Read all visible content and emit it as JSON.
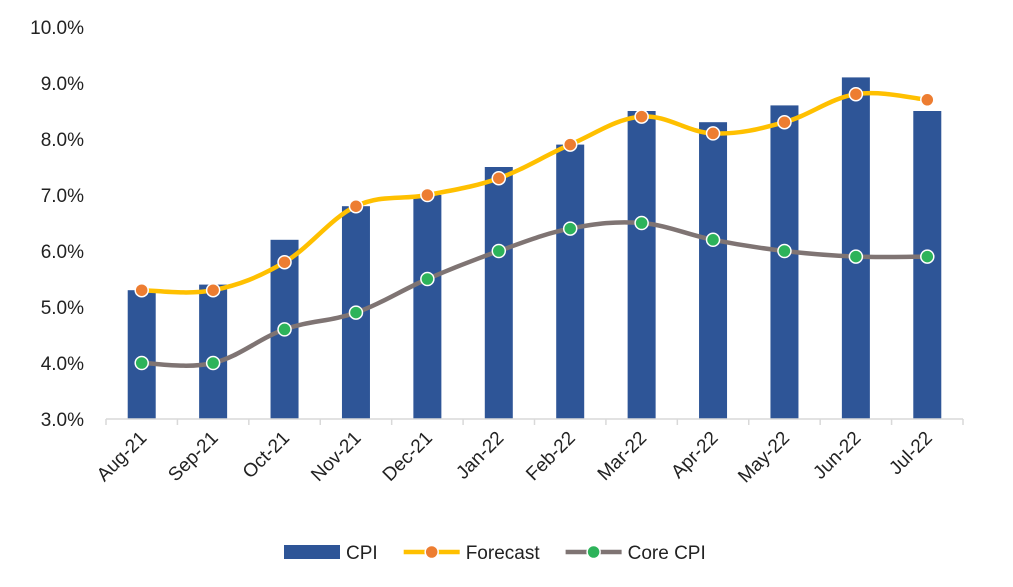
{
  "chart_data": {
    "type": "bar",
    "categories": [
      "Aug-21",
      "Sep-21",
      "Oct-21",
      "Nov-21",
      "Dec-21",
      "Jan-22",
      "Feb-22",
      "Mar-22",
      "Apr-22",
      "May-22",
      "Jun-22",
      "Jul-22"
    ],
    "ylim": [
      3.0,
      10.0
    ],
    "ytick_labels": [
      "3.0%",
      "4.0%",
      "5.0%",
      "6.0%",
      "7.0%",
      "8.0%",
      "9.0%",
      "10.0%"
    ],
    "ytick_values": [
      3,
      4,
      5,
      6,
      7,
      8,
      9,
      10
    ],
    "grid": false,
    "legend_position": "bottom",
    "series": [
      {
        "name": "CPI",
        "kind": "bar",
        "color": "#2E5597",
        "values": [
          5.3,
          5.4,
          6.2,
          6.8,
          7.0,
          7.5,
          7.9,
          8.5,
          8.3,
          8.6,
          9.1,
          8.5
        ]
      },
      {
        "name": "Forecast",
        "kind": "line",
        "color": "#FFC000",
        "marker_color": "#ED7D31",
        "values": [
          5.3,
          5.3,
          5.8,
          6.8,
          7.0,
          7.3,
          7.9,
          8.4,
          8.1,
          8.3,
          8.8,
          8.7
        ]
      },
      {
        "name": "Core CPI",
        "kind": "line",
        "color": "#7F7473",
        "marker_color": "#2DB35A",
        "values": [
          4.0,
          4.0,
          4.6,
          4.9,
          5.5,
          6.0,
          6.4,
          6.5,
          6.2,
          6.0,
          5.9,
          5.9
        ]
      }
    ]
  }
}
